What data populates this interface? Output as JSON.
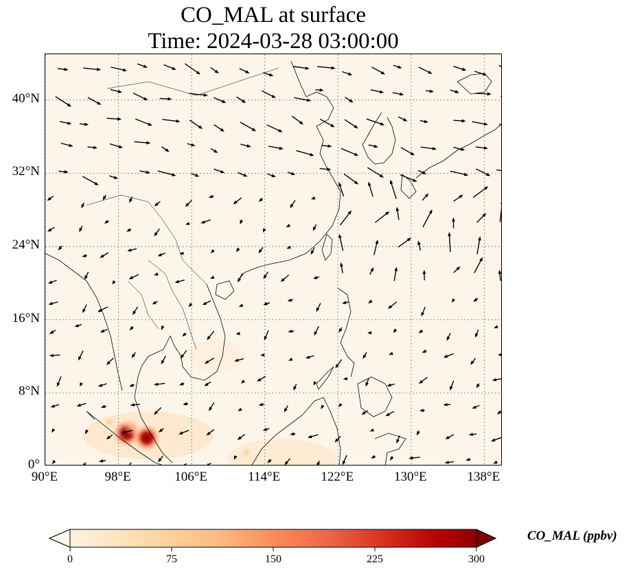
{
  "title": {
    "line1": "CO_MAL at surface",
    "line2": "Time: 2024-03-28 03:00:00"
  },
  "map": {
    "lon_range": [
      90,
      140
    ],
    "lat_range": [
      0,
      45
    ],
    "gridlines": true,
    "lat_ticks": [
      {
        "value": 0,
        "label": "0°"
      },
      {
        "value": 8,
        "label": "8°N"
      },
      {
        "value": 16,
        "label": "16°N"
      },
      {
        "value": 24,
        "label": "24°N"
      },
      {
        "value": 32,
        "label": "32°N"
      },
      {
        "value": 40,
        "label": "40°N"
      }
    ],
    "lon_ticks": [
      {
        "value": 90,
        "label": "90°E"
      },
      {
        "value": 98,
        "label": "98°E"
      },
      {
        "value": 106,
        "label": "106°E"
      },
      {
        "value": 114,
        "label": "114°E"
      },
      {
        "value": 122,
        "label": "122°E"
      },
      {
        "value": 130,
        "label": "130°E"
      },
      {
        "value": 138,
        "label": "138°E"
      }
    ],
    "hotspots": [
      {
        "lon": 98.9,
        "lat": 3.6,
        "value": 290
      },
      {
        "lon": 101.1,
        "lat": 3.1,
        "value": 280
      },
      {
        "lon": 99.5,
        "lat": 4.3,
        "value": 150
      },
      {
        "lon": 112.0,
        "lat": 1.5,
        "value": 50
      },
      {
        "lon": 97.0,
        "lat": 4.8,
        "value": 40
      }
    ],
    "wind_arrow_color": "#000000",
    "coast_color": "#000000",
    "background_color": "#fdf5ea"
  },
  "colorbar": {
    "label": "CO_MAL (ppbv)",
    "ticks": [
      "0",
      "75",
      "150",
      "225",
      "300"
    ],
    "min": 0,
    "max": 300,
    "colormap": "OrRd",
    "colors": [
      "#fff7ec",
      "#fee8c8",
      "#fdd49e",
      "#fdbb84",
      "#fc8d59",
      "#ef6548",
      "#d7301f",
      "#b30000",
      "#7f0000"
    ]
  }
}
